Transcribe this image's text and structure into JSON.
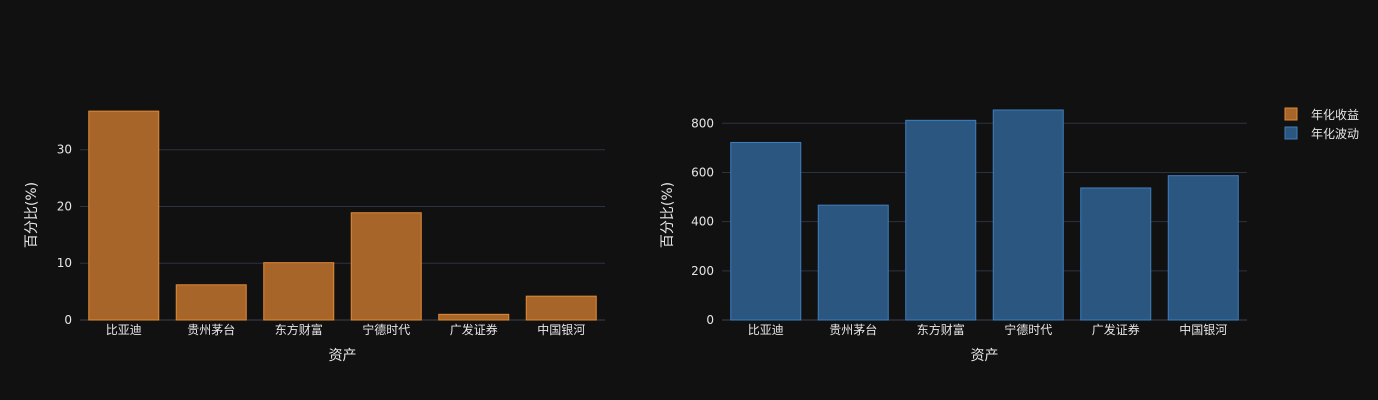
{
  "chart_data": [
    {
      "type": "bar",
      "categories": [
        "比亚迪",
        "贵州茅台",
        "东方财富",
        "宁德时代",
        "广发证券",
        "中国银河"
      ],
      "series": [
        {
          "name": "年化收益",
          "values": [
            36.8,
            6.2,
            10.1,
            18.9,
            1.0,
            4.2
          ]
        }
      ],
      "xlabel": "资产",
      "ylabel": "百分比(%)",
      "ylim": [
        0,
        37
      ],
      "yticks": [
        0,
        10,
        20,
        30
      ],
      "grid": true,
      "color": "#a8652a",
      "edge_color": "#e08a34"
    },
    {
      "type": "bar",
      "categories": [
        "比亚迪",
        "贵州茅台",
        "东方财富",
        "宁德时代",
        "广发证券",
        "中国银河"
      ],
      "series": [
        {
          "name": "年化波动",
          "values": [
            722,
            467,
            812,
            854,
            537,
            587
          ]
        }
      ],
      "xlabel": "资产",
      "ylabel": "百分比(%)",
      "ylim": [
        0,
        854
      ],
      "yticks": [
        0,
        200,
        400,
        600,
        800
      ],
      "grid": true,
      "color": "#2a5680",
      "edge_color": "#3f7fbf"
    }
  ],
  "legend": {
    "placement": "top-right",
    "items": [
      {
        "label": "年化收益",
        "color": "#a8652a",
        "edge": "#e08a34"
      },
      {
        "label": "年化波动",
        "color": "#2a5680",
        "edge": "#3f7fbf"
      }
    ]
  }
}
